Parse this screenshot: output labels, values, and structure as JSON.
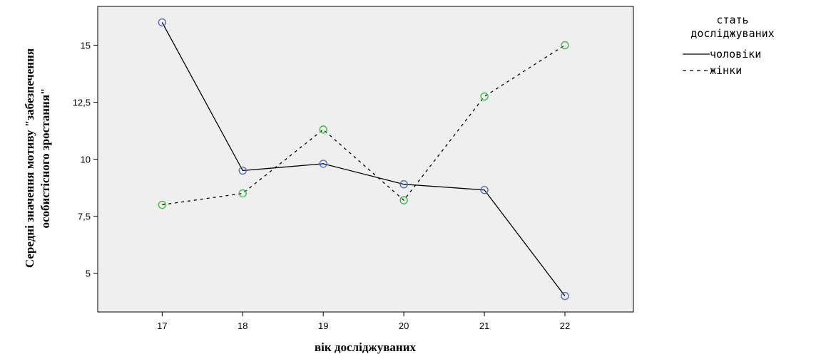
{
  "chart_data": {
    "type": "line",
    "title": "",
    "xlabel": "вік досліджуваних",
    "ylabel_lines": [
      "Середні значення мотиву \"забезпечення",
      "особистісного зростання\""
    ],
    "x": [
      17,
      18,
      19,
      20,
      21,
      22
    ],
    "x_ticks": [
      "17",
      "18",
      "19",
      "20",
      "21",
      "22"
    ],
    "xlim": [
      16.2,
      22.85
    ],
    "ylim": [
      3.3,
      16.7
    ],
    "y_ticks": [
      {
        "value": 5,
        "label": "5"
      },
      {
        "value": 7.5,
        "label": "7,5"
      },
      {
        "value": 10,
        "label": "10"
      },
      {
        "value": 12.5,
        "label": "12,5"
      },
      {
        "value": 15,
        "label": "15"
      }
    ],
    "grid": false,
    "plot_background": "#efefef",
    "legend": {
      "title_lines": [
        "стать",
        "досліджуваних"
      ],
      "placement": "right"
    },
    "series": [
      {
        "name": "чоловіки",
        "values": [
          16.0,
          9.5,
          9.8,
          8.9,
          8.65,
          4.0
        ],
        "line_style": "solid",
        "line_color": "#000000",
        "marker_color": "#4f6fc6"
      },
      {
        "name": "жінки",
        "values": [
          8.0,
          8.5,
          11.3,
          8.2,
          12.75,
          15.0
        ],
        "line_style": "dashed",
        "line_color": "#000000",
        "marker_color": "#3cbf45"
      }
    ]
  }
}
